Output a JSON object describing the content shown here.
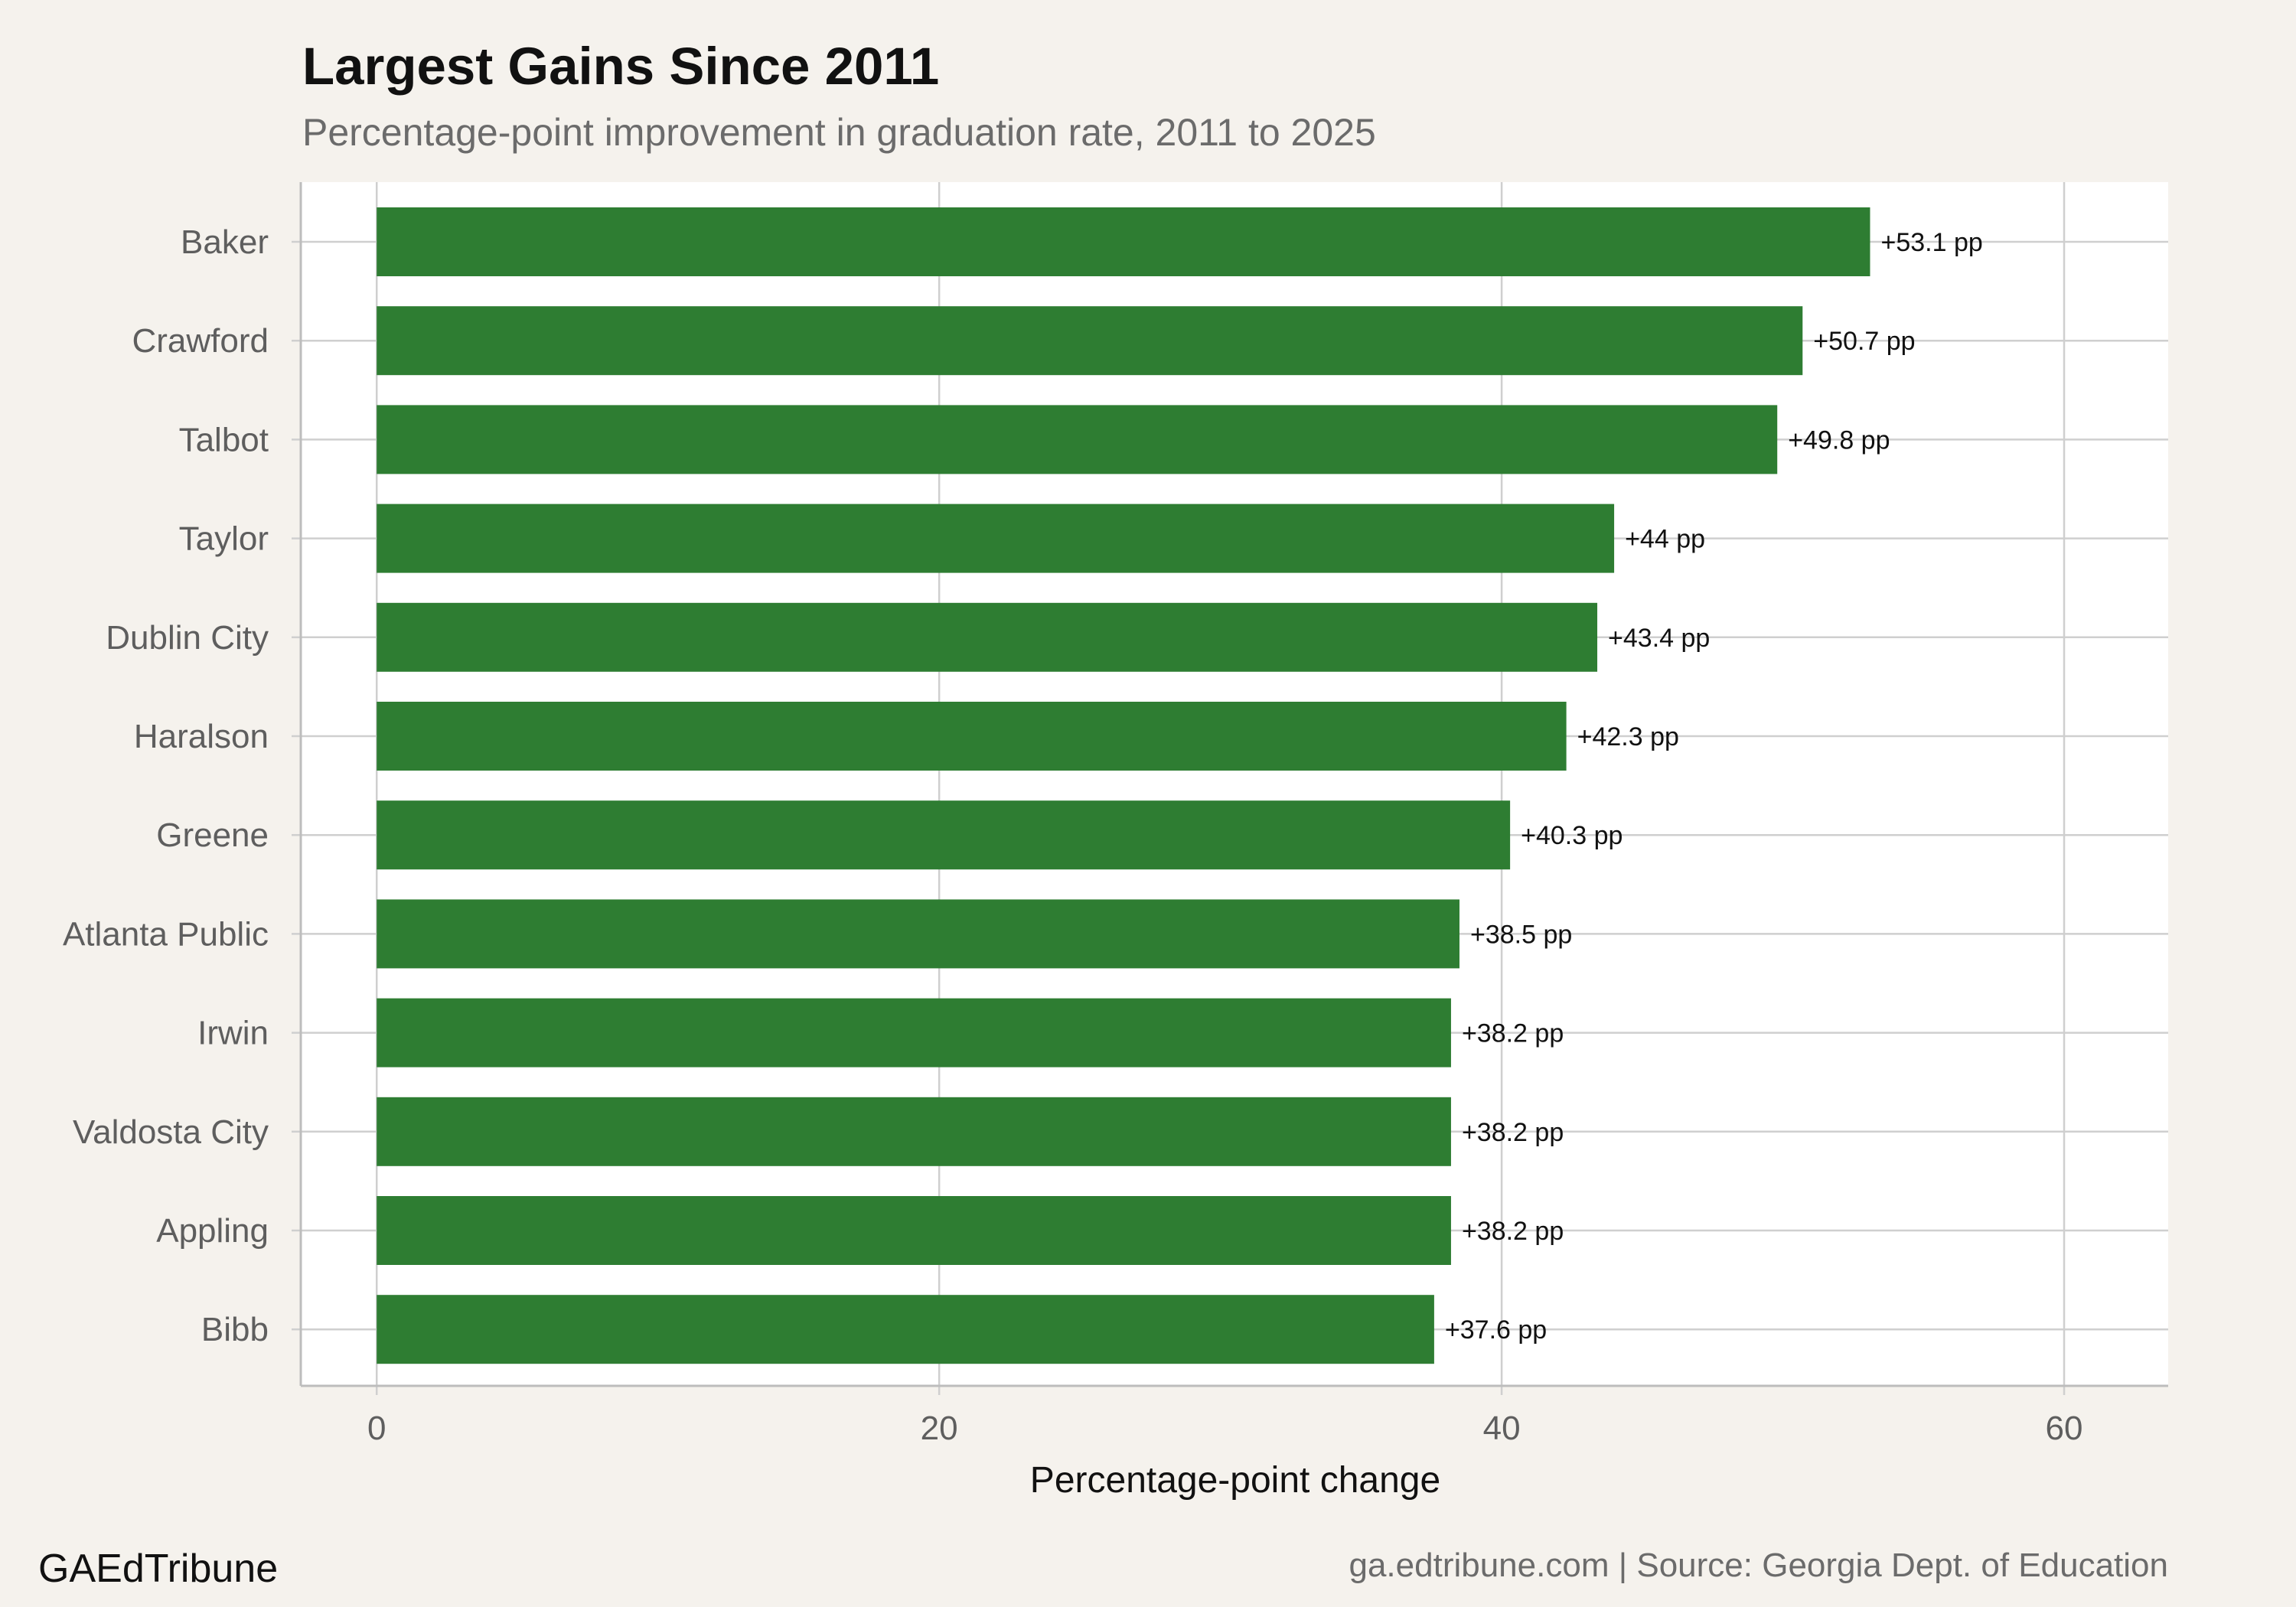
{
  "chart_data": {
    "type": "bar",
    "orientation": "horizontal",
    "title": "Largest Gains Since 2011",
    "subtitle": "Percentage-point improvement in graduation rate, 2011 to 2025",
    "xlabel": "Percentage-point change",
    "ylabel": "",
    "categories": [
      "Baker",
      "Crawford",
      "Talbot",
      "Taylor",
      "Dublin City",
      "Haralson",
      "Greene",
      "Atlanta Public",
      "Irwin",
      "Valdosta City",
      "Appling",
      "Bibb"
    ],
    "values": [
      53.1,
      50.7,
      49.8,
      44,
      43.4,
      42.3,
      40.3,
      38.5,
      38.2,
      38.2,
      38.2,
      37.6
    ],
    "data_labels": [
      "+53.1 pp",
      "+50.7 pp",
      "+49.8 pp",
      "+44 pp",
      "+43.4 pp",
      "+42.3 pp",
      "+40.3 pp",
      "+38.5 pp",
      "+38.2 pp",
      "+38.2 pp",
      "+38.2 pp",
      "+37.6 pp"
    ],
    "xlim": [
      -2.7,
      63.7
    ],
    "xticks": [
      0,
      20,
      40,
      60
    ],
    "xtick_labels": [
      "0",
      "20",
      "40",
      "60"
    ],
    "grid": true,
    "legend": "none",
    "bar_color": "#2e7d32"
  },
  "footer": {
    "brand": "GAEdTribune",
    "source": "ga.edtribune.com | Source: Georgia Dept. of Education"
  },
  "colors": {
    "background": "#f5f2ed",
    "panel": "#ffffff",
    "grid": "#cfcfcf",
    "bar": "#2e7d32"
  }
}
